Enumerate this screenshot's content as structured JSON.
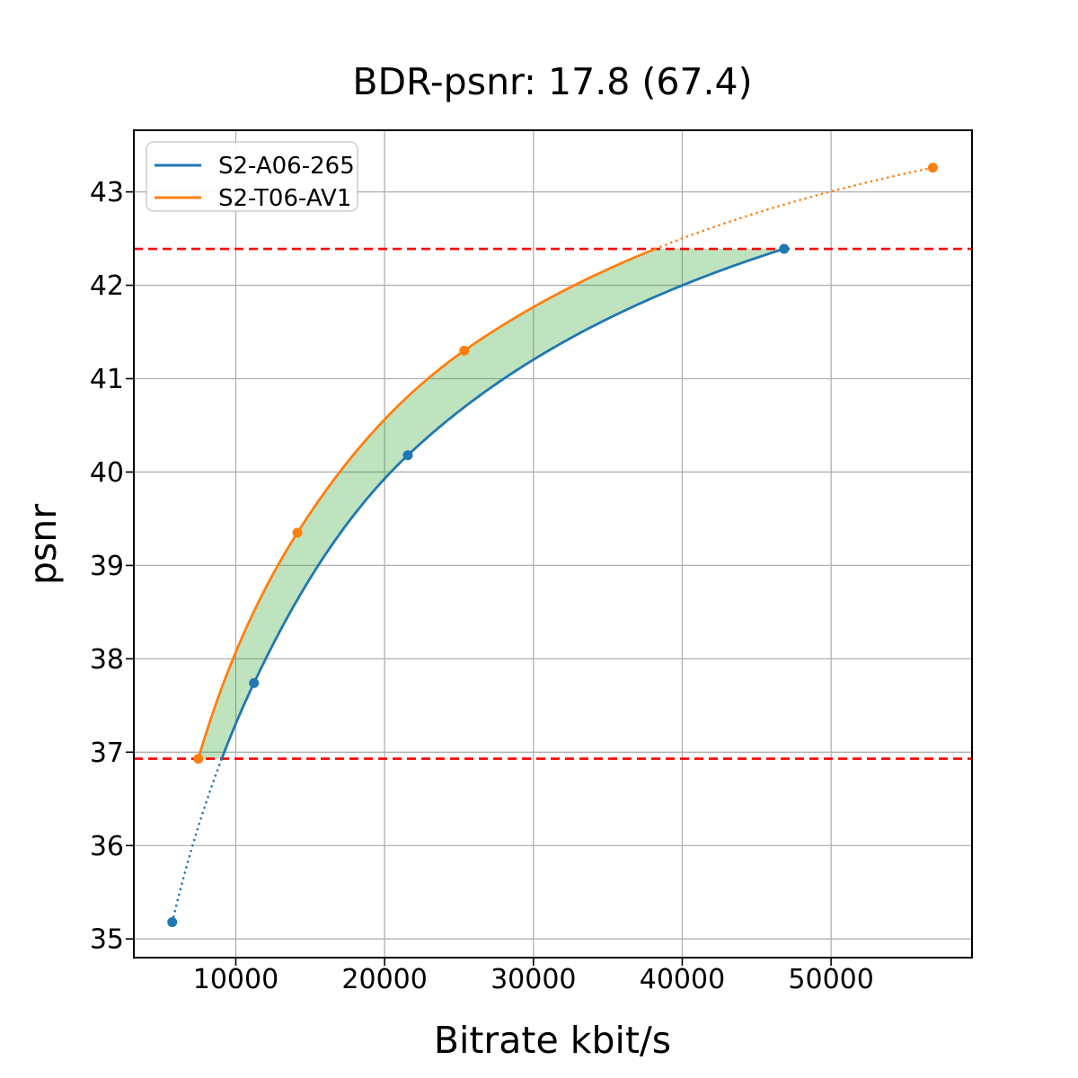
{
  "chart_data": {
    "type": "line",
    "title": "BDR-psnr: 17.8 (67.4)",
    "xlabel": "Bitrate kbit/s",
    "ylabel": "psnr",
    "xlim": [
      3150,
      59470
    ],
    "ylim": [
      34.8,
      43.66
    ],
    "x_ticks": [
      10000,
      20000,
      30000,
      40000,
      50000
    ],
    "y_ticks": [
      35,
      36,
      37,
      38,
      39,
      40,
      41,
      42,
      43
    ],
    "grid": true,
    "grid_color": "#b0b0b0",
    "spine_color": "#000000",
    "legend_position": "upper left",
    "series": [
      {
        "name": "S2-A06-265",
        "color": "#1f77b4",
        "points": [
          [
            5730,
            35.18
          ],
          [
            11220,
            37.74
          ],
          [
            21560,
            40.18
          ],
          [
            46840,
            42.39
          ]
        ]
      },
      {
        "name": "S2-T06-AV1",
        "color": "#ff7f0e",
        "points": [
          [
            7480,
            36.93
          ],
          [
            14140,
            39.35
          ],
          [
            25350,
            41.3
          ],
          [
            56840,
            43.26
          ]
        ]
      }
    ],
    "reference_lines": {
      "style": "dashed",
      "color": "#ff0000",
      "values": [
        36.93,
        42.39
      ]
    },
    "overlap_fill": {
      "color": "#2ca02c",
      "opacity": 0.3,
      "y_range": [
        36.93,
        42.39
      ]
    },
    "extrapolation_style": "dotted"
  }
}
